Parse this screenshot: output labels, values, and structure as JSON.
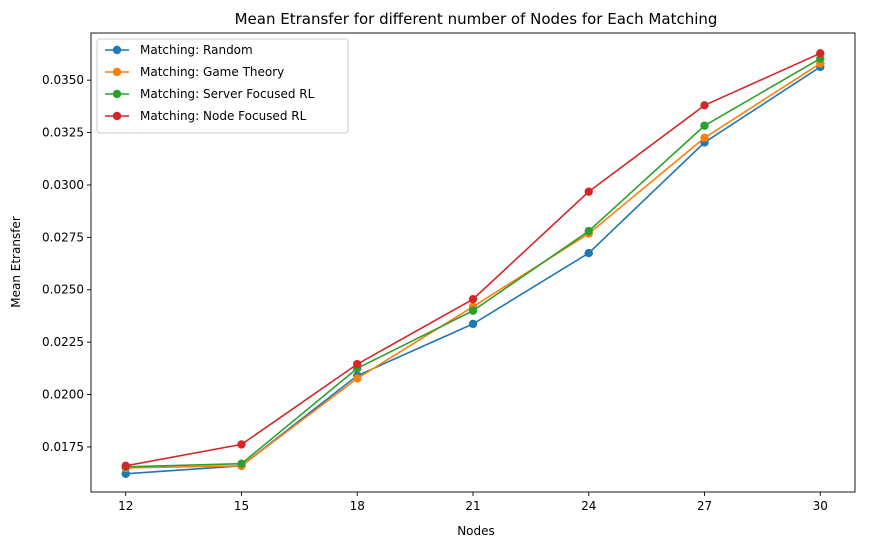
{
  "chart_data": {
    "type": "line",
    "title": "Mean Etransfer for different number of Nodes for Each Matching",
    "xlabel": "Nodes",
    "ylabel": "Mean Etransfer",
    "x": [
      12,
      15,
      18,
      21,
      24,
      27,
      30
    ],
    "x_ticks": [
      "12",
      "15",
      "18",
      "21",
      "24",
      "27",
      "30"
    ],
    "y_ticks": [
      "0.0175",
      "0.0200",
      "0.0225",
      "0.0250",
      "0.0275",
      "0.0300",
      "0.0325",
      "0.0350"
    ],
    "ylim": [
      0.01535,
      0.03725
    ],
    "xlim": [
      11.1,
      30.9
    ],
    "grid": false,
    "legend_position": "top-left",
    "series": [
      {
        "name": "Matching: Random",
        "color": "#1f77b4",
        "values": [
          0.01622,
          0.0166,
          0.0209,
          0.02337,
          0.02675,
          0.03203,
          0.03563
        ]
      },
      {
        "name": "Matching: Game Theory",
        "color": "#ff7f0e",
        "values": [
          0.0165,
          0.0166,
          0.02077,
          0.02419,
          0.02768,
          0.03225,
          0.0358
        ]
      },
      {
        "name": "Matching: Server Focused RL",
        "color": "#2ca02c",
        "values": [
          0.01655,
          0.0167,
          0.02125,
          0.024,
          0.0278,
          0.03283,
          0.03603
        ]
      },
      {
        "name": "Matching: Node Focused RL",
        "color": "#d62728",
        "values": [
          0.0166,
          0.01762,
          0.02145,
          0.02455,
          0.02968,
          0.0338,
          0.03628
        ]
      }
    ]
  }
}
